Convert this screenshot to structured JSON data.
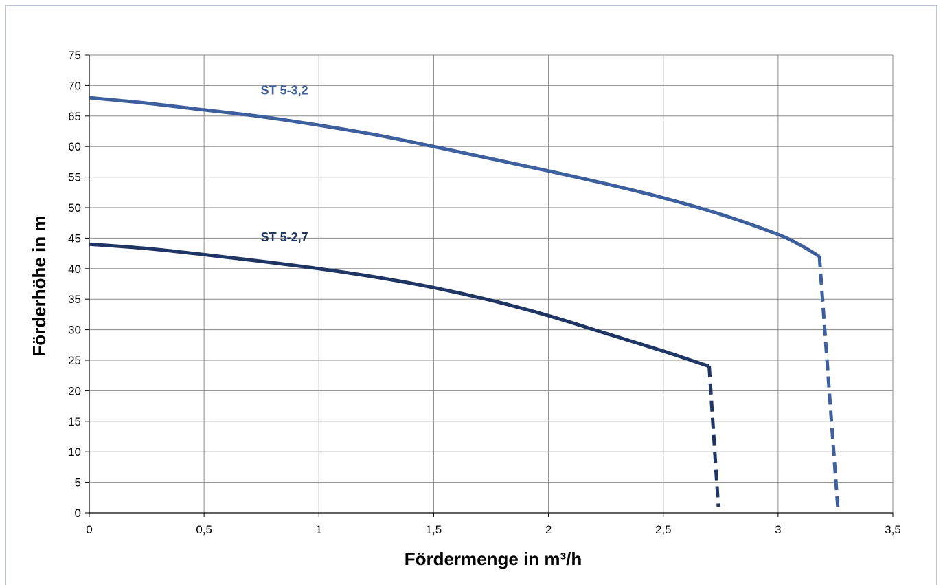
{
  "chart_data": {
    "type": "line",
    "title": "",
    "xlabel": "Fördermenge in m³/h",
    "ylabel": "Förderhöhe in m",
    "xlim": [
      0,
      3.5
    ],
    "ylim": [
      0,
      75
    ],
    "x_ticks": [
      {
        "value": 0,
        "label": "0"
      },
      {
        "value": 0.5,
        "label": "0,5"
      },
      {
        "value": 1,
        "label": "1"
      },
      {
        "value": 1.5,
        "label": "1,5"
      },
      {
        "value": 2,
        "label": "2"
      },
      {
        "value": 2.5,
        "label": "2,5"
      },
      {
        "value": 3,
        "label": "3"
      },
      {
        "value": 3.5,
        "label": "3,5"
      }
    ],
    "y_ticks": [
      {
        "value": 0,
        "label": "0"
      },
      {
        "value": 5,
        "label": "5"
      },
      {
        "value": 10,
        "label": "10"
      },
      {
        "value": 15,
        "label": "15"
      },
      {
        "value": 20,
        "label": "20"
      },
      {
        "value": 25,
        "label": "25"
      },
      {
        "value": 30,
        "label": "30"
      },
      {
        "value": 35,
        "label": "35"
      },
      {
        "value": 40,
        "label": "40"
      },
      {
        "value": 45,
        "label": "45"
      },
      {
        "value": 50,
        "label": "50"
      },
      {
        "value": 55,
        "label": "55"
      },
      {
        "value": 60,
        "label": "60"
      },
      {
        "value": 65,
        "label": "65"
      },
      {
        "value": 70,
        "label": "70"
      },
      {
        "value": 75,
        "label": "75"
      }
    ],
    "grid": true,
    "legend": "none",
    "series": [
      {
        "name": "ST 5-3,2",
        "color": "#3d5f9e",
        "label_at": {
          "x": 0.85,
          "y": 68.5
        },
        "points": [
          {
            "x": 0,
            "y": 68
          },
          {
            "x": 0.25,
            "y": 67.1
          },
          {
            "x": 0.5,
            "y": 66
          },
          {
            "x": 0.75,
            "y": 64.9
          },
          {
            "x": 1,
            "y": 63.5
          },
          {
            "x": 1.25,
            "y": 61.9
          },
          {
            "x": 1.5,
            "y": 60
          },
          {
            "x": 1.75,
            "y": 58
          },
          {
            "x": 2,
            "y": 56
          },
          {
            "x": 2.25,
            "y": 53.9
          },
          {
            "x": 2.5,
            "y": 51.6
          },
          {
            "x": 2.75,
            "y": 48.9
          },
          {
            "x": 3,
            "y": 45.6
          },
          {
            "x": 3.1,
            "y": 43.8
          },
          {
            "x": 3.18,
            "y": 42
          }
        ],
        "dashed_points": [
          {
            "x": 3.18,
            "y": 42
          },
          {
            "x": 3.26,
            "y": 1
          }
        ]
      },
      {
        "name": "ST 5-2,7",
        "color": "#1f3563",
        "label_at": {
          "x": 0.85,
          "y": 44.5
        },
        "points": [
          {
            "x": 0,
            "y": 44
          },
          {
            "x": 0.25,
            "y": 43.3
          },
          {
            "x": 0.5,
            "y": 42.3
          },
          {
            "x": 0.75,
            "y": 41.2
          },
          {
            "x": 1,
            "y": 40
          },
          {
            "x": 1.25,
            "y": 38.6
          },
          {
            "x": 1.5,
            "y": 36.9
          },
          {
            "x": 1.75,
            "y": 34.8
          },
          {
            "x": 2,
            "y": 32.3
          },
          {
            "x": 2.25,
            "y": 29.4
          },
          {
            "x": 2.5,
            "y": 26.5
          },
          {
            "x": 2.62,
            "y": 25
          },
          {
            "x": 2.7,
            "y": 24
          }
        ],
        "dashed_points": [
          {
            "x": 2.7,
            "y": 24
          },
          {
            "x": 2.74,
            "y": 1
          }
        ]
      }
    ]
  }
}
